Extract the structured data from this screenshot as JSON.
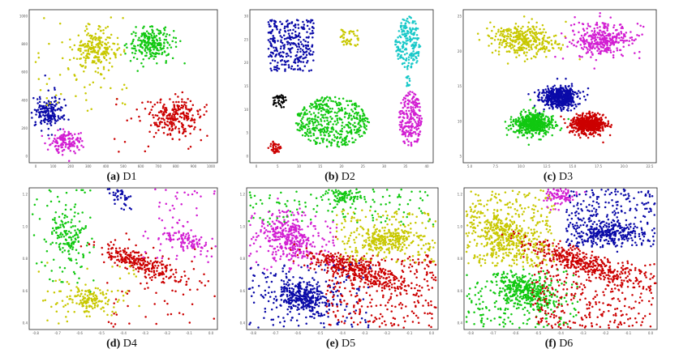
{
  "colors": {
    "red": "#cc0000",
    "green": "#11c811",
    "blue": "#0a0aa8",
    "yellow": "#c8c800",
    "magenta": "#d21ed2",
    "cyan": "#18c8c8",
    "black": "#000000"
  },
  "chart_data": [
    {
      "id": "d1",
      "type": "scatter",
      "caption_letter": "(a)",
      "caption_name": "D1",
      "xlim": [
        0,
        1000
      ],
      "ylim": [
        0,
        1000
      ],
      "x_ticks": [
        "0",
        "100",
        "200",
        "300",
        "400",
        "500",
        "600",
        "700",
        "800",
        "900",
        "1000"
      ],
      "y_ticks": [
        "0",
        "200",
        "400",
        "600",
        "800",
        "1000"
      ],
      "clusters": [
        {
          "color": "yellow",
          "cx": 350,
          "cy": 740,
          "sx": 55,
          "sy": 60,
          "n": 220
        },
        {
          "color": "green",
          "cx": 650,
          "cy": 780,
          "sx": 60,
          "sy": 50,
          "n": 220
        },
        {
          "color": "blue",
          "cx": 100,
          "cy": 330,
          "sx": 40,
          "sy": 50,
          "n": 170
        },
        {
          "color": "magenta",
          "cx": 200,
          "cy": 140,
          "sx": 45,
          "sy": 38,
          "n": 140
        },
        {
          "color": "red",
          "cx": 780,
          "cy": 300,
          "sx": 60,
          "sy": 60,
          "n": 230
        }
      ],
      "noise": [
        {
          "color": "yellow",
          "x": [
            30,
            520
          ],
          "y": [
            330,
            950
          ],
          "n": 60
        },
        {
          "color": "green",
          "x": [
            560,
            840
          ],
          "y": [
            560,
            950
          ],
          "n": 12
        },
        {
          "color": "blue",
          "x": [
            20,
            210
          ],
          "y": [
            200,
            580
          ],
          "n": 12
        },
        {
          "color": "red",
          "x": [
            450,
            950
          ],
          "y": [
            60,
            420
          ],
          "n": 30
        }
      ]
    },
    {
      "id": "d2",
      "type": "scatter",
      "caption_letter": "(b)",
      "caption_name": "D2",
      "xlim": [
        0,
        40
      ],
      "ylim": [
        0,
        30
      ],
      "x_ticks": [
        "0",
        "5",
        "10",
        "15",
        "20",
        "25",
        "30",
        "35",
        "40"
      ],
      "y_ticks": [
        "0",
        "5",
        "10",
        "15",
        "20",
        "25",
        "30"
      ],
      "clusters": [
        {
          "color": "blue",
          "cx": 9,
          "cy": 23,
          "sx": 5,
          "sy": 5,
          "n": 300,
          "shape": "box"
        },
        {
          "color": "yellow",
          "cx": 21.5,
          "cy": 24.5,
          "sx": 2.2,
          "sy": 1.6,
          "n": 45,
          "shape": "box"
        },
        {
          "color": "cyan",
          "cx": 34.5,
          "cy": 23.5,
          "sx": 2.8,
          "sy": 5.2,
          "n": 200,
          "shape": "ellipse"
        },
        {
          "color": "cyan",
          "cx": 34.5,
          "cy": 16.2,
          "sx": 0.4,
          "sy": 1.2,
          "n": 12,
          "shape": "box"
        },
        {
          "color": "black",
          "cx": 6.5,
          "cy": 12,
          "sx": 1.7,
          "sy": 1.3,
          "n": 40,
          "shape": "ellipse"
        },
        {
          "color": "green",
          "cx": 18,
          "cy": 8,
          "sx": 8,
          "sy": 5,
          "n": 450,
          "shape": "ellipse"
        },
        {
          "color": "red",
          "cx": 5.5,
          "cy": 3,
          "sx": 1.5,
          "sy": 1.2,
          "n": 40,
          "shape": "ellipse"
        },
        {
          "color": "magenta",
          "cx": 35,
          "cy": 8.5,
          "sx": 2.5,
          "sy": 5.5,
          "n": 220,
          "shape": "ellipse"
        }
      ],
      "noise": []
    },
    {
      "id": "d3",
      "type": "scatter",
      "caption_letter": "(c)",
      "caption_name": "D3",
      "xlim": [
        0,
        25
      ],
      "ylim": [
        0,
        25
      ],
      "x_ticks": [
        "5.0",
        "7.5",
        "10.0",
        "12.5",
        "15.0",
        "17.5",
        "20.0",
        "22.5"
      ],
      "y_ticks": [
        "5",
        "10",
        "15",
        "20",
        "25"
      ],
      "clusters": [
        {
          "color": "yellow",
          "cx": 8,
          "cy": 20,
          "sx": 2.2,
          "sy": 1.3,
          "n": 320
        },
        {
          "color": "magenta",
          "cx": 18,
          "cy": 20,
          "sx": 1.8,
          "sy": 1.4,
          "n": 320
        },
        {
          "color": "blue",
          "cx": 12.5,
          "cy": 10.7,
          "sx": 1.2,
          "sy": 0.9,
          "n": 520
        },
        {
          "color": "green",
          "cx": 9,
          "cy": 6.3,
          "sx": 1.3,
          "sy": 0.9,
          "n": 520
        },
        {
          "color": "red",
          "cx": 16.2,
          "cy": 6.3,
          "sx": 1.1,
          "sy": 0.8,
          "n": 520
        }
      ],
      "noise": [
        {
          "color": "yellow",
          "x": [
            3,
            13
          ],
          "y": [
            17,
            23
          ],
          "n": 25
        },
        {
          "color": "magenta",
          "x": [
            14,
            24
          ],
          "y": [
            17,
            23
          ],
          "n": 25
        }
      ]
    },
    {
      "id": "d4",
      "type": "scatter",
      "caption_letter": "(d)",
      "caption_name": "D4",
      "xlim": [
        -0.85,
        0.0
      ],
      "ylim": [
        0.3,
        1.25
      ],
      "x_ticks": [
        "-0.8",
        "-0.7",
        "-0.6",
        "-0.5",
        "-0.4",
        "-0.3",
        "-0.2",
        "-0.1",
        "0.0"
      ],
      "y_ticks": [
        "0.4",
        "0.6",
        "0.8",
        "1.0",
        "1.2"
      ],
      "clusters": [
        {
          "color": "green",
          "cx": -0.68,
          "cy": 0.93,
          "sx": 0.035,
          "sy": 0.09,
          "n": 130
        },
        {
          "color": "yellow",
          "cx": -0.58,
          "cy": 0.5,
          "sx": 0.045,
          "sy": 0.045,
          "n": 130,
          "rot": -35
        },
        {
          "color": "red",
          "cx": -0.35,
          "cy": 0.75,
          "sx": 0.11,
          "sy": 0.03,
          "n": 260,
          "rot": -30
        },
        {
          "color": "magenta",
          "cx": -0.14,
          "cy": 0.9,
          "sx": 0.05,
          "sy": 0.03,
          "n": 90,
          "rot": -20
        },
        {
          "color": "blue",
          "cx": -0.44,
          "cy": 1.19,
          "sx": 0.025,
          "sy": 0.03,
          "n": 30
        }
      ],
      "noise": [
        {
          "color": "green",
          "x": [
            -0.84,
            -0.55
          ],
          "y": [
            0.55,
            1.25
          ],
          "n": 60
        },
        {
          "color": "yellow",
          "x": [
            -0.84,
            -0.35
          ],
          "y": [
            0.3,
            0.75
          ],
          "n": 50
        },
        {
          "color": "red",
          "x": [
            -0.5,
            -0.01
          ],
          "y": [
            0.3,
            0.95
          ],
          "n": 60
        },
        {
          "color": "magenta",
          "x": [
            -0.35,
            -0.01
          ],
          "y": [
            0.75,
            1.25
          ],
          "n": 60
        },
        {
          "color": "blue",
          "x": [
            -0.5,
            -0.38
          ],
          "y": [
            1.1,
            1.25
          ],
          "n": 10
        }
      ]
    },
    {
      "id": "d5",
      "type": "scatter",
      "caption_letter": "(e)",
      "caption_name": "D5",
      "xlim": [
        -0.85,
        0.0
      ],
      "ylim": [
        0.3,
        1.25
      ],
      "x_ticks": [
        "-0.8",
        "-0.7",
        "-0.6",
        "-0.5",
        "-0.4",
        "-0.3",
        "-0.2",
        "-0.1",
        "0.0"
      ],
      "y_ticks": [
        "0.4",
        "0.6",
        "0.8",
        "1.0",
        "1.2"
      ],
      "clusters": [
        {
          "color": "magenta",
          "cx": -0.66,
          "cy": 0.92,
          "sx": 0.06,
          "sy": 0.08,
          "n": 300,
          "rot": 40
        },
        {
          "color": "blue",
          "cx": -0.6,
          "cy": 0.52,
          "sx": 0.07,
          "sy": 0.05,
          "n": 320,
          "rot": -30
        },
        {
          "color": "red",
          "cx": -0.37,
          "cy": 0.7,
          "sx": 0.13,
          "sy": 0.035,
          "n": 360,
          "rot": -28
        },
        {
          "color": "yellow",
          "cx": -0.22,
          "cy": 0.9,
          "sx": 0.07,
          "sy": 0.04,
          "n": 220,
          "rot": 15
        },
        {
          "color": "green",
          "cx": -0.42,
          "cy": 1.2,
          "sx": 0.04,
          "sy": 0.025,
          "n": 80
        }
      ],
      "noise": [
        {
          "color": "green",
          "x": [
            -0.84,
            -0.01
          ],
          "y": [
            1.0,
            1.24
          ],
          "n": 120
        },
        {
          "color": "magenta",
          "x": [
            -0.84,
            -0.45
          ],
          "y": [
            0.7,
            1.1
          ],
          "n": 80
        },
        {
          "color": "blue",
          "x": [
            -0.84,
            -0.3
          ],
          "y": [
            0.31,
            0.75
          ],
          "n": 160
        },
        {
          "color": "red",
          "x": [
            -0.5,
            -0.01
          ],
          "y": [
            0.31,
            0.8
          ],
          "n": 300
        },
        {
          "color": "yellow",
          "x": [
            -0.45,
            -0.01
          ],
          "y": [
            0.75,
            1.1
          ],
          "n": 170
        }
      ]
    },
    {
      "id": "d6",
      "type": "scatter",
      "caption_letter": "(f)",
      "caption_name": "D6",
      "xlim": [
        -0.85,
        0.0
      ],
      "ylim": [
        0.3,
        1.25
      ],
      "x_ticks": [
        "-0.8",
        "-0.7",
        "-0.6",
        "-0.5",
        "-0.4",
        "-0.3",
        "-0.2",
        "-0.1",
        "0.0"
      ],
      "y_ticks": [
        "0.4",
        "0.6",
        "0.8",
        "1.0",
        "1.2"
      ],
      "clusters": [
        {
          "color": "yellow",
          "cx": -0.67,
          "cy": 0.93,
          "sx": 0.06,
          "sy": 0.09,
          "n": 350,
          "rot": 35
        },
        {
          "color": "green",
          "cx": -0.58,
          "cy": 0.55,
          "sx": 0.07,
          "sy": 0.05,
          "n": 340,
          "rot": -35
        },
        {
          "color": "red",
          "cx": -0.35,
          "cy": 0.76,
          "sx": 0.13,
          "sy": 0.035,
          "n": 380,
          "rot": -28
        },
        {
          "color": "blue",
          "cx": -0.22,
          "cy": 0.95,
          "sx": 0.07,
          "sy": 0.04,
          "n": 230,
          "rot": 10
        },
        {
          "color": "magenta",
          "cx": -0.43,
          "cy": 1.2,
          "sx": 0.035,
          "sy": 0.025,
          "n": 60
        }
      ],
      "noise": [
        {
          "color": "yellow",
          "x": [
            -0.84,
            -0.45
          ],
          "y": [
            0.72,
            1.24
          ],
          "n": 240
        },
        {
          "color": "green",
          "x": [
            -0.84,
            -0.35
          ],
          "y": [
            0.31,
            0.7
          ],
          "n": 200
        },
        {
          "color": "red",
          "x": [
            -0.55,
            -0.01
          ],
          "y": [
            0.31,
            0.75
          ],
          "n": 330
        },
        {
          "color": "blue",
          "x": [
            -0.4,
            -0.01
          ],
          "y": [
            0.85,
            1.24
          ],
          "n": 260
        },
        {
          "color": "magenta",
          "x": [
            -0.5,
            -0.38
          ],
          "y": [
            1.1,
            1.24
          ],
          "n": 20
        }
      ]
    }
  ]
}
